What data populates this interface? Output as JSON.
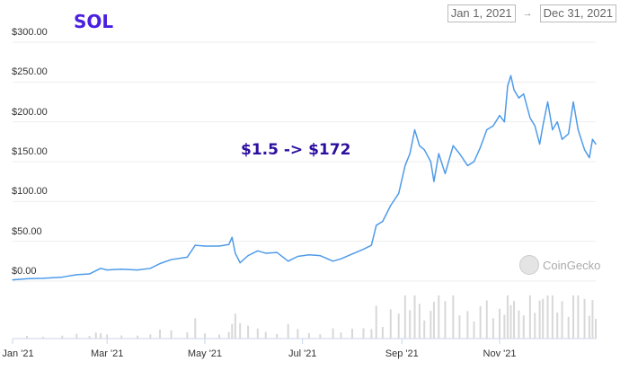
{
  "header": {
    "coin": "SOL",
    "date_from": "Jan 1, 2021",
    "arrow": "→",
    "date_to": "Dec 31, 2021"
  },
  "watermark": "CoinGecko",
  "chart_data": {
    "type": "line",
    "title": "SOL",
    "annotation": "$1.5 -> $172",
    "ylim": [
      0,
      300
    ],
    "y_ticks": [
      "$0.00",
      "$50.00",
      "$100.00",
      "$150.00",
      "$200.00",
      "$250.00",
      "$300.00"
    ],
    "x_ticks": [
      "Jan '21",
      "Mar '21",
      "May '21",
      "Jul '21",
      "Sep '21",
      "Nov '21"
    ],
    "x_range": [
      "2021-01-01",
      "2021-12-31"
    ],
    "grid": true,
    "line_color": "#4f9be8",
    "series": [
      {
        "points": [
          [
            "2021-01-01",
            1.5
          ],
          [
            "2021-01-10",
            3
          ],
          [
            "2021-01-20",
            3.5
          ],
          [
            "2021-02-01",
            5
          ],
          [
            "2021-02-10",
            8
          ],
          [
            "2021-02-18",
            9
          ],
          [
            "2021-02-22",
            13
          ],
          [
            "2021-02-25",
            16
          ],
          [
            "2021-03-01",
            14
          ],
          [
            "2021-03-10",
            15
          ],
          [
            "2021-03-20",
            14
          ],
          [
            "2021-03-28",
            16
          ],
          [
            "2021-04-03",
            22
          ],
          [
            "2021-04-10",
            27
          ],
          [
            "2021-04-20",
            30
          ],
          [
            "2021-04-25",
            45
          ],
          [
            "2021-05-01",
            44
          ],
          [
            "2021-05-10",
            44
          ],
          [
            "2021-05-16",
            46
          ],
          [
            "2021-05-18",
            55
          ],
          [
            "2021-05-20",
            35
          ],
          [
            "2021-05-23",
            23
          ],
          [
            "2021-05-28",
            32
          ],
          [
            "2021-06-03",
            38
          ],
          [
            "2021-06-08",
            35
          ],
          [
            "2021-06-15",
            36
          ],
          [
            "2021-06-22",
            25
          ],
          [
            "2021-06-28",
            31
          ],
          [
            "2021-07-05",
            33
          ],
          [
            "2021-07-12",
            32
          ],
          [
            "2021-07-20",
            25
          ],
          [
            "2021-07-25",
            28
          ],
          [
            "2021-08-01",
            34
          ],
          [
            "2021-08-08",
            40
          ],
          [
            "2021-08-13",
            45
          ],
          [
            "2021-08-16",
            70
          ],
          [
            "2021-08-20",
            75
          ],
          [
            "2021-08-25",
            95
          ],
          [
            "2021-08-30",
            110
          ],
          [
            "2021-09-03",
            145
          ],
          [
            "2021-09-06",
            160
          ],
          [
            "2021-09-09",
            190
          ],
          [
            "2021-09-12",
            170
          ],
          [
            "2021-09-15",
            165
          ],
          [
            "2021-09-19",
            150
          ],
          [
            "2021-09-21",
            125
          ],
          [
            "2021-09-24",
            160
          ],
          [
            "2021-09-28",
            135
          ],
          [
            "2021-10-03",
            170
          ],
          [
            "2021-10-07",
            160
          ],
          [
            "2021-10-12",
            145
          ],
          [
            "2021-10-16",
            150
          ],
          [
            "2021-10-20",
            168
          ],
          [
            "2021-10-24",
            190
          ],
          [
            "2021-10-28",
            195
          ],
          [
            "2021-11-01",
            208
          ],
          [
            "2021-11-04",
            200
          ],
          [
            "2021-11-06",
            245
          ],
          [
            "2021-11-08",
            258
          ],
          [
            "2021-11-10",
            240
          ],
          [
            "2021-11-13",
            230
          ],
          [
            "2021-11-16",
            235
          ],
          [
            "2021-11-20",
            205
          ],
          [
            "2021-11-23",
            195
          ],
          [
            "2021-11-26",
            172
          ],
          [
            "2021-11-28",
            195
          ],
          [
            "2021-12-01",
            225
          ],
          [
            "2021-12-04",
            190
          ],
          [
            "2021-12-07",
            200
          ],
          [
            "2021-12-10",
            178
          ],
          [
            "2021-12-14",
            185
          ],
          [
            "2021-12-17",
            225
          ],
          [
            "2021-12-20",
            190
          ],
          [
            "2021-12-24",
            165
          ],
          [
            "2021-12-27",
            155
          ],
          [
            "2021-12-29",
            178
          ],
          [
            "2021-12-31",
            172
          ]
        ]
      }
    ],
    "volume_series_color": "#d8d8d8"
  }
}
